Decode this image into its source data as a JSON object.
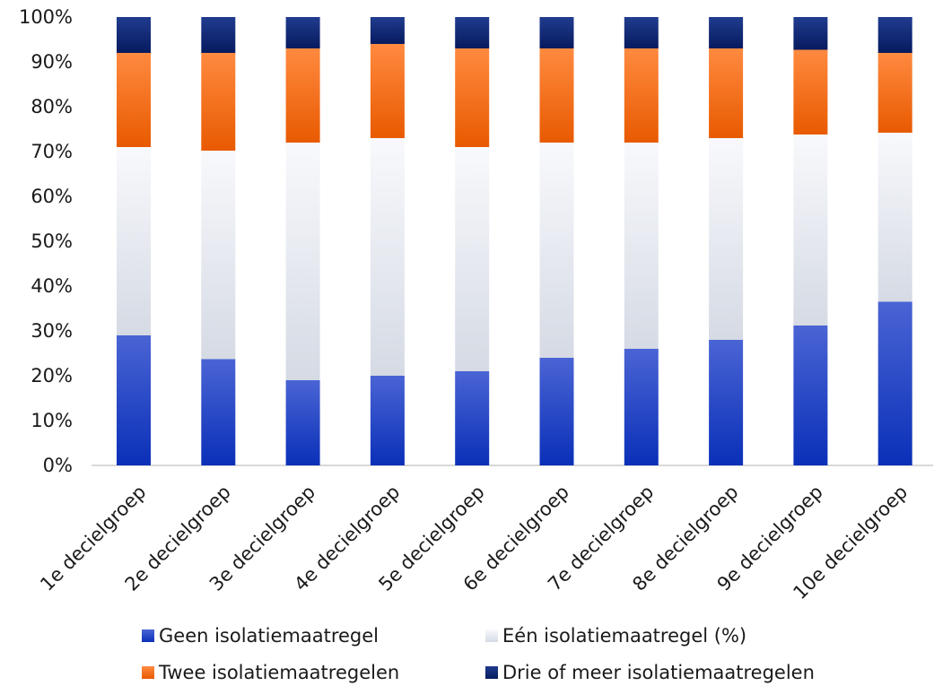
{
  "chart_data": {
    "type": "bar",
    "stacked": true,
    "categories": [
      "1e decielgroep",
      "2e decielgroep",
      "3e decielgroep",
      "4e decielgroep",
      "5e decielgroep",
      "6e decielgroep",
      "7e decielgroep",
      "8e decielgroep",
      "9e decielgroep",
      "10e decielgroep"
    ],
    "series": [
      {
        "name": "Geen isolatiemaatregel",
        "color": "#1f3fbf",
        "values": [
          29,
          23.7,
          19,
          20,
          21,
          24,
          26,
          28,
          31.2,
          36.5
        ]
      },
      {
        "name": "Eén isolatiemaatregel (%)",
        "color": "#e4e8f0",
        "values": [
          42,
          46.5,
          53,
          53,
          50,
          48,
          46,
          45,
          42.6,
          37.7
        ]
      },
      {
        "name": "Twee isolatiemaatregelen",
        "color": "#f26a10",
        "values": [
          21,
          21.8,
          21,
          21,
          22,
          21,
          21,
          20,
          18.9,
          17.8
        ]
      },
      {
        "name": "Drie of meer isolatiemaatregelen",
        "color": "#0c2470",
        "values": [
          8,
          8,
          7,
          6,
          7,
          7,
          7,
          7,
          7.3,
          8
        ]
      }
    ],
    "ylim": [
      0,
      100
    ],
    "yticks": [
      "0%",
      "10%",
      "20%",
      "30%",
      "40%",
      "50%",
      "60%",
      "70%",
      "80%",
      "90%",
      "100%"
    ],
    "grid": false,
    "legend_position": "bottom"
  }
}
